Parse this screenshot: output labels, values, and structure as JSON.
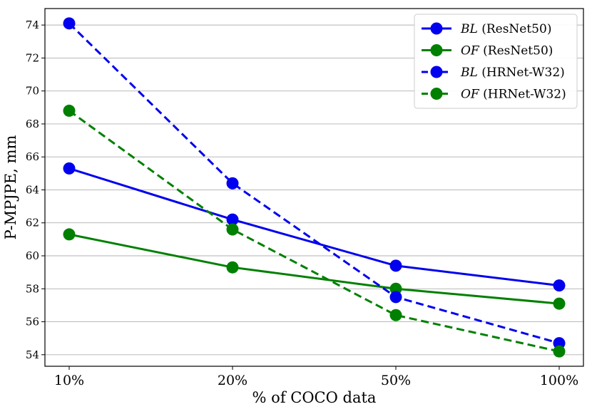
{
  "chart_data": {
    "type": "line",
    "title": "",
    "xlabel": "% of COCO data",
    "ylabel": "P-MPJPE, mm",
    "categories": [
      "10%",
      "20%",
      "50%",
      "100%"
    ],
    "ylim": [
      53.3,
      75.0
    ],
    "yticks": [
      54,
      56,
      58,
      60,
      62,
      64,
      66,
      68,
      70,
      72,
      74
    ],
    "ytick_labels": [
      "54",
      "56",
      "58",
      "60",
      "62",
      "64",
      "66",
      "68",
      "70",
      "72",
      "74"
    ],
    "grid": "horizontal",
    "legend_position": "top-right",
    "series": [
      {
        "name": "BL (ResNet50)",
        "name_italic": "BL",
        "name_rest": " (ResNet50)",
        "color": "#0000ee",
        "style": "solid",
        "values": [
          65.3,
          62.2,
          59.4,
          58.2
        ]
      },
      {
        "name": "OF (ResNet50)",
        "name_italic": "OF",
        "name_rest": " (ResNet50)",
        "color": "#008000",
        "style": "solid",
        "values": [
          61.3,
          59.3,
          58.0,
          57.1
        ]
      },
      {
        "name": "BL (HRNet-W32)",
        "name_italic": "BL",
        "name_rest": " (HRNet-W32)",
        "color": "#0000ee",
        "style": "dashed",
        "values": [
          74.1,
          64.4,
          57.5,
          54.7
        ]
      },
      {
        "name": "OF (HRNet-W32)",
        "name_italic": "OF",
        "name_rest": " (HRNet-W32)",
        "color": "#008000",
        "style": "dashed",
        "values": [
          68.8,
          61.6,
          56.4,
          54.2
        ]
      }
    ]
  }
}
